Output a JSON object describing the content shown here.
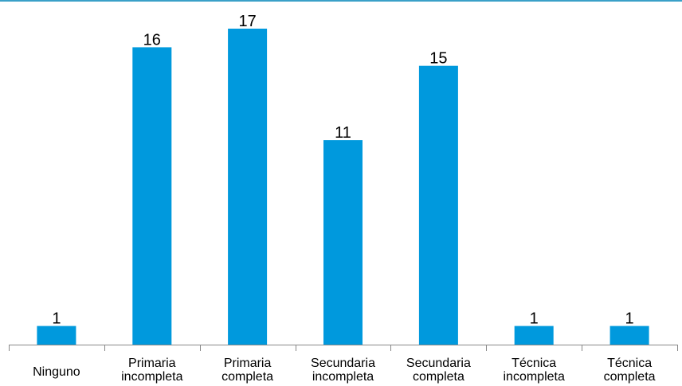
{
  "colors": {
    "bar": "#0099dd",
    "axis": "#888888",
    "top_rule": "#3aa0c8"
  },
  "chart_data": {
    "type": "bar",
    "categories": [
      "Ninguno",
      "Primaria incompleta",
      "Primaria completa",
      "Secundaria incompleta",
      "Secundaria completa",
      "Técnica incompleta",
      "Técnica completa"
    ],
    "category_lines": [
      [
        "Ninguno"
      ],
      [
        "Primaria",
        "incompleta"
      ],
      [
        "Primaria",
        "completa"
      ],
      [
        "Secundaria",
        "incompleta"
      ],
      [
        "Secundaria",
        "completa"
      ],
      [
        "Técnica",
        "incompleta"
      ],
      [
        "Técnica",
        "completa"
      ]
    ],
    "values": [
      1,
      16,
      17,
      11,
      15,
      1,
      1
    ],
    "data_labels": [
      "1",
      "16",
      "17",
      "11",
      "15",
      "1",
      "1"
    ],
    "title": "",
    "xlabel": "",
    "ylabel": "",
    "ylim": [
      0,
      17
    ],
    "grid": false,
    "legend": "none"
  }
}
